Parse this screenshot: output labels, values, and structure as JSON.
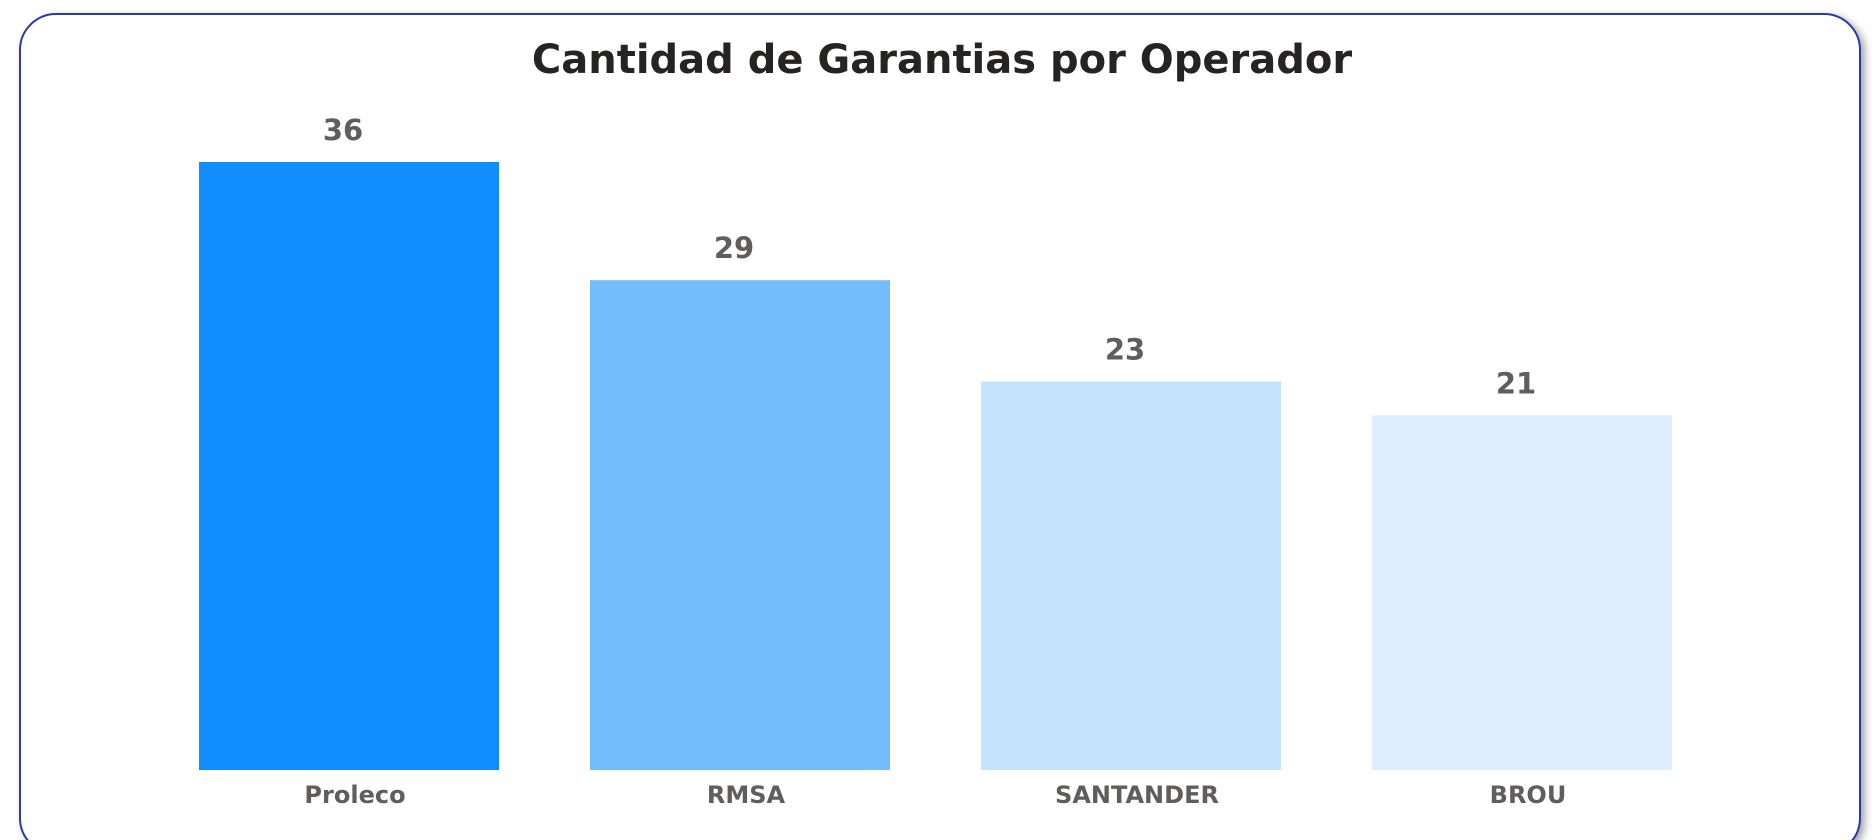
{
  "chart_data": {
    "type": "bar",
    "title": "Cantidad de Garantias por Operador",
    "categories": [
      "Proleco",
      "RMSA",
      "SANTANDER",
      "BROU"
    ],
    "values": [
      36,
      29,
      23,
      21
    ],
    "colors": [
      "#118dff",
      "#74bdfc",
      "#c5e3fd",
      "#dfeffd"
    ]
  }
}
